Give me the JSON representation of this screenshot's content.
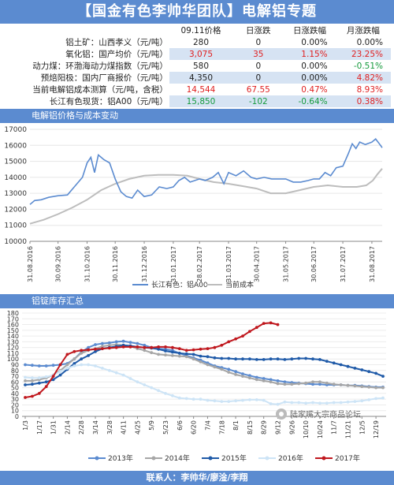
{
  "header": {
    "title": "【国金有色李帅华团队】电解铝专题"
  },
  "table": {
    "columns": [
      "09.11价格",
      "日涨跌",
      "日涨跌幅",
      "月涨跌幅"
    ],
    "rows": [
      {
        "name": "铝土矿：山西孝义（元/吨）",
        "price": "280",
        "chg": "0",
        "chgpct": "0.00%",
        "monpct": "0.00%",
        "price_color": "#222222",
        "chg_color": "#222222",
        "chgpct_color": "#222222",
        "monpct_color": "#222222"
      },
      {
        "name": "氧化铝：国产均价（元/吨）",
        "price": "3,075",
        "chg": "35",
        "chgpct": "1.15%",
        "monpct": "23.25%",
        "price_color": "#e02020",
        "chg_color": "#e02020",
        "chgpct_color": "#e02020",
        "monpct_color": "#e02020"
      },
      {
        "name": "动力煤：环渤海动力煤指数（元/吨）",
        "price": "580",
        "chg": "0",
        "chgpct": "0.00%",
        "monpct": "-0.51%",
        "price_color": "#222222",
        "chg_color": "#222222",
        "chgpct_color": "#222222",
        "monpct_color": "#159a3d"
      },
      {
        "name": "预焙阳极：国内厂商报价（元/吨）",
        "price": "4,350",
        "chg": "0",
        "chgpct": "0.00%",
        "monpct": "4.82%",
        "price_color": "#222222",
        "chg_color": "#222222",
        "chgpct_color": "#222222",
        "monpct_color": "#e02020"
      },
      {
        "name": "当前电解铝成本测算（元/吨，含税）",
        "price": "14,544",
        "chg": "67.55",
        "chgpct": "0.47%",
        "monpct": "8.93%",
        "price_color": "#e02020",
        "chg_color": "#e02020",
        "chgpct_color": "#e02020",
        "monpct_color": "#e02020"
      },
      {
        "name": "长江有色现货：铝A00（元/吨）",
        "price": "15,850",
        "chg": "-102",
        "chgpct": "-0.64%",
        "monpct": "0.38%",
        "price_color": "#159a3d",
        "chg_color": "#159a3d",
        "chgpct_color": "#159a3d",
        "monpct_color": "#e02020"
      }
    ]
  },
  "chart1_section": {
    "title": "电解铝价格与成本变动"
  },
  "chart2_section": {
    "title": "铝锭库存汇总"
  },
  "footer": {
    "contact": "联系人：李帅华/廖淦/李翔"
  },
  "watermark": {
    "text": "陆家嘴大宗商品论坛"
  },
  "colors": {
    "accent": "#5b8bd0",
    "up": "#e02020",
    "down": "#159a3d"
  },
  "chart_data": [
    {
      "type": "line",
      "title": "电解铝价格与成本变动",
      "ylim": [
        10000,
        17000
      ],
      "yticks": [
        10000,
        11000,
        12000,
        13000,
        14000,
        15000,
        16000,
        17000
      ],
      "xlim": [
        "2016-08-31",
        "2017-09-11"
      ],
      "xticks": [
        "31.08.2016",
        "30.09.2016",
        "31.10.2016",
        "30.11.2016",
        "31.12.2016",
        "31.01.2017",
        "28.02.2017",
        "31.03.2017",
        "30.04.2017",
        "31.05.2017",
        "30.06.2017",
        "31.07.2017",
        "31.08.2017"
      ],
      "legend_position": "bottom",
      "series": [
        {
          "name": "长江有色：铝A00",
          "color": "#5b8bd0",
          "points": [
            [
              "2016-08-31",
              12300
            ],
            [
              "2016-09-05",
              12550
            ],
            [
              "2016-09-12",
              12600
            ],
            [
              "2016-09-20",
              12750
            ],
            [
              "2016-09-30",
              12850
            ],
            [
              "2016-10-10",
              12900
            ],
            [
              "2016-10-18",
              13450
            ],
            [
              "2016-10-26",
              14000
            ],
            [
              "2016-10-31",
              14900
            ],
            [
              "2016-11-04",
              15250
            ],
            [
              "2016-11-08",
              14300
            ],
            [
              "2016-11-12",
              15400
            ],
            [
              "2016-11-18",
              15100
            ],
            [
              "2016-11-24",
              14900
            ],
            [
              "2016-11-30",
              13900
            ],
            [
              "2016-12-06",
              13100
            ],
            [
              "2016-12-12",
              12800
            ],
            [
              "2016-12-18",
              12700
            ],
            [
              "2016-12-24",
              13200
            ],
            [
              "2016-12-31",
              12800
            ],
            [
              "2017-01-08",
              12900
            ],
            [
              "2017-01-16",
              13400
            ],
            [
              "2017-01-24",
              13300
            ],
            [
              "2017-01-31",
              13400
            ],
            [
              "2017-02-06",
              13800
            ],
            [
              "2017-02-12",
              14000
            ],
            [
              "2017-02-18",
              13700
            ],
            [
              "2017-02-28",
              13900
            ],
            [
              "2017-03-06",
              13800
            ],
            [
              "2017-03-14",
              14000
            ],
            [
              "2017-03-20",
              14300
            ],
            [
              "2017-03-26",
              13600
            ],
            [
              "2017-03-31",
              14300
            ],
            [
              "2017-04-08",
              14100
            ],
            [
              "2017-04-16",
              14400
            ],
            [
              "2017-04-24",
              14000
            ],
            [
              "2017-04-30",
              13900
            ],
            [
              "2017-05-08",
              14000
            ],
            [
              "2017-05-16",
              13900
            ],
            [
              "2017-05-24",
              13900
            ],
            [
              "2017-05-31",
              13900
            ],
            [
              "2017-06-08",
              13700
            ],
            [
              "2017-06-16",
              13700
            ],
            [
              "2017-06-24",
              13800
            ],
            [
              "2017-06-30",
              13900
            ],
            [
              "2017-07-06",
              13900
            ],
            [
              "2017-07-12",
              14300
            ],
            [
              "2017-07-18",
              14100
            ],
            [
              "2017-07-24",
              14600
            ],
            [
              "2017-07-31",
              14700
            ],
            [
              "2017-08-06",
              15500
            ],
            [
              "2017-08-10",
              16100
            ],
            [
              "2017-08-14",
              15800
            ],
            [
              "2017-08-18",
              16200
            ],
            [
              "2017-08-24",
              16050
            ],
            [
              "2017-08-31",
              16200
            ],
            [
              "2017-09-04",
              16400
            ],
            [
              "2017-09-08",
              16100
            ],
            [
              "2017-09-11",
              15850
            ]
          ]
        },
        {
          "name": "当前成本",
          "color": "#bdbdbd",
          "points": [
            [
              "2016-08-31",
              11100
            ],
            [
              "2016-09-15",
              11350
            ],
            [
              "2016-09-30",
              11700
            ],
            [
              "2016-10-15",
              12100
            ],
            [
              "2016-10-31",
              12600
            ],
            [
              "2016-11-15",
              13200
            ],
            [
              "2016-11-30",
              13600
            ],
            [
              "2016-12-15",
              13900
            ],
            [
              "2016-12-31",
              14100
            ],
            [
              "2017-01-15",
              14150
            ],
            [
              "2017-01-31",
              14150
            ],
            [
              "2017-02-15",
              14100
            ],
            [
              "2017-02-28",
              13900
            ],
            [
              "2017-03-15",
              13700
            ],
            [
              "2017-03-31",
              13600
            ],
            [
              "2017-04-15",
              13450
            ],
            [
              "2017-04-30",
              13300
            ],
            [
              "2017-05-15",
              13000
            ],
            [
              "2017-05-31",
              13000
            ],
            [
              "2017-06-15",
              13200
            ],
            [
              "2017-06-30",
              13400
            ],
            [
              "2017-07-15",
              13500
            ],
            [
              "2017-07-31",
              13400
            ],
            [
              "2017-08-15",
              13400
            ],
            [
              "2017-08-25",
              13500
            ],
            [
              "2017-09-01",
              13800
            ],
            [
              "2017-09-06",
              14200
            ],
            [
              "2017-09-11",
              14544
            ]
          ]
        }
      ]
    },
    {
      "type": "line",
      "title": "铝锭库存汇总",
      "ylim": [
        0,
        180
      ],
      "yticks": [
        0,
        10,
        20,
        30,
        40,
        50,
        60,
        70,
        80,
        90,
        100,
        110,
        120,
        130,
        140,
        150,
        160,
        170,
        180
      ],
      "categories": [
        "1/3",
        "1/10",
        "1/17",
        "1/24",
        "1/31",
        "2/7",
        "2/14",
        "2/21",
        "2/28",
        "3/7",
        "3/14",
        "3/21",
        "3/28",
        "4/4",
        "4/11",
        "4/18",
        "4/25",
        "5/2",
        "5/9",
        "5/16",
        "5/23",
        "5/30",
        "6/6",
        "6/13",
        "6/20",
        "6/27",
        "7/4",
        "7/11",
        "7/18",
        "7/25",
        "8/1",
        "8/8",
        "8/15",
        "8/22",
        "8/29",
        "9/5",
        "9/12",
        "9/19",
        "9/26",
        "10/3",
        "10/10",
        "10/17",
        "10/24",
        "10/31",
        "11/7",
        "11/14",
        "11/21",
        "11/28",
        "12/5",
        "12/12",
        "12/19",
        "12/26"
      ],
      "tick_labels": [
        "1/3",
        "1/17",
        "1/31",
        "2/14",
        "2/28",
        "3/14",
        "3/28",
        "4/11",
        "4/25",
        "5/9",
        "5/23",
        "6/6",
        "6/20",
        "7/4",
        "7/18",
        "8/1",
        "8/15",
        "8/29",
        "9/12",
        "9/26",
        "10/10",
        "10/24",
        "11/7",
        "11/21",
        "12/5",
        "12/19"
      ],
      "legend_position": "bottom",
      "series": [
        {
          "name": "2013年",
          "color": "#5b8bd0",
          "values": [
            90,
            89,
            88,
            88,
            89,
            90,
            92,
            100,
            112,
            120,
            125,
            127,
            128,
            130,
            131,
            129,
            127,
            124,
            120,
            118,
            117,
            115,
            110,
            106,
            102,
            98,
            93,
            88,
            85,
            82,
            78,
            74,
            71,
            68,
            66,
            64,
            62,
            60,
            59,
            58,
            57,
            56,
            56,
            55,
            55,
            55,
            54,
            54,
            53,
            52,
            51,
            51
          ]
        },
        {
          "name": "2014年",
          "color": "#a6a6a6",
          "values": [
            62,
            62,
            64,
            67,
            72,
            80,
            90,
            100,
            110,
            115,
            118,
            122,
            124,
            125,
            124,
            122,
            118,
            115,
            111,
            108,
            107,
            106,
            105,
            104,
            100,
            95,
            90,
            86,
            82,
            77,
            73,
            70,
            67,
            64,
            62,
            60,
            57,
            56,
            56,
            57,
            58,
            60,
            60,
            58,
            56,
            55,
            54,
            53,
            52,
            51,
            50,
            50
          ]
        },
        {
          "name": "2015年",
          "color": "#1f5aa8",
          "values": [
            55,
            56,
            58,
            60,
            64,
            72,
            82,
            92,
            100,
            106,
            113,
            118,
            120,
            122,
            124,
            123,
            121,
            120,
            119,
            117,
            114,
            112,
            110,
            109,
            108,
            105,
            104,
            102,
            101,
            101,
            100,
            100,
            100,
            99,
            99,
            100,
            100,
            99,
            100,
            101,
            101,
            100,
            99,
            96,
            93,
            90,
            87,
            84,
            81,
            78,
            75,
            70
          ]
        },
        {
          "name": "2016年",
          "color": "#cde4f6",
          "values": [
            68,
            67,
            67,
            69,
            72,
            78,
            84,
            88,
            90,
            90,
            88,
            84,
            80,
            76,
            72,
            66,
            60,
            55,
            50,
            45,
            40,
            36,
            32,
            31,
            30,
            30,
            28,
            27,
            26,
            26,
            27,
            28,
            29,
            29,
            28,
            22,
            21,
            25,
            24,
            24,
            23,
            24,
            23,
            23,
            24,
            24,
            25,
            26,
            27,
            29,
            31,
            32
          ]
        },
        {
          "name": "2017年",
          "color": "#c0181e",
          "values": [
            33,
            35,
            40,
            52,
            70,
            90,
            108,
            113,
            115,
            116,
            117,
            118,
            119,
            120,
            121,
            121,
            121,
            120,
            120,
            121,
            121,
            120,
            118,
            115,
            116,
            117,
            118,
            120,
            124,
            130,
            135,
            140,
            148,
            155,
            162,
            163,
            160,
            null,
            null,
            null,
            null,
            null,
            null,
            null,
            null,
            null,
            null,
            null,
            null,
            null,
            null,
            null
          ]
        }
      ]
    }
  ]
}
